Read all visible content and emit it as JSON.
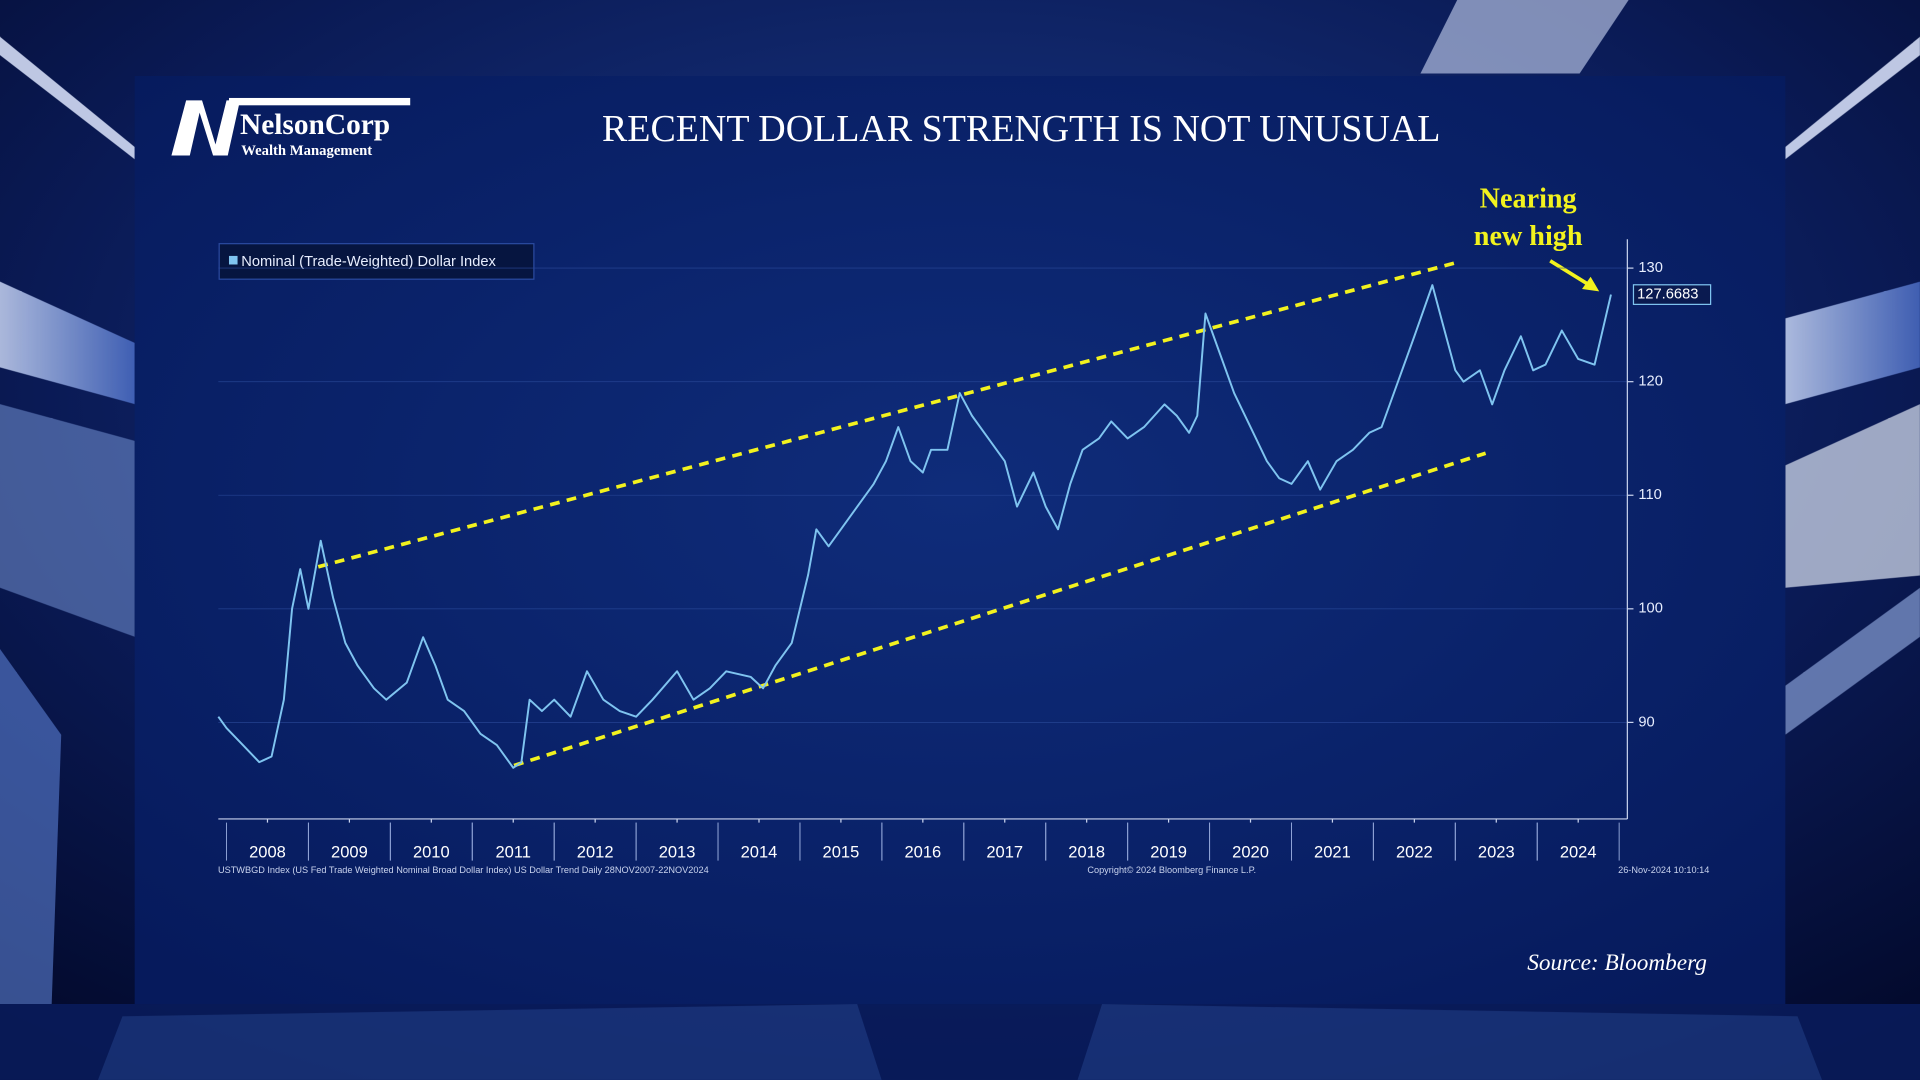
{
  "logo": {
    "name": "NelsonCorp",
    "tagline": "Wealth Management"
  },
  "chart_data": {
    "type": "line",
    "title": "RECENT DOLLAR STRENGTH IS NOT UNUSUAL",
    "series": [
      {
        "name": "Nominal (Trade-Weighted) Dollar Index",
        "color": "#7fc4f0",
        "x": [
          2007.9,
          2008.0,
          2008.2,
          2008.4,
          2008.55,
          2008.7,
          2008.8,
          2008.9,
          2009.0,
          2009.15,
          2009.3,
          2009.45,
          2009.6,
          2009.8,
          2009.95,
          2010.2,
          2010.4,
          2010.55,
          2010.7,
          2010.9,
          2011.1,
          2011.3,
          2011.5,
          2011.6,
          2011.7,
          2011.85,
          2012.0,
          2012.2,
          2012.4,
          2012.6,
          2012.8,
          2013.0,
          2013.2,
          2013.5,
          2013.7,
          2013.9,
          2014.1,
          2014.4,
          2014.55,
          2014.7,
          2014.9,
          2015.1,
          2015.2,
          2015.35,
          2015.5,
          2015.7,
          2015.9,
          2016.05,
          2016.2,
          2016.35,
          2016.5,
          2016.6,
          2016.8,
          2016.95,
          2017.1,
          2017.3,
          2017.5,
          2017.65,
          2017.85,
          2018.0,
          2018.15,
          2018.3,
          2018.45,
          2018.65,
          2018.8,
          2019.0,
          2019.2,
          2019.45,
          2019.6,
          2019.75,
          2019.85,
          2019.95,
          2020.1,
          2020.3,
          2020.5,
          2020.7,
          2020.85,
          2021.0,
          2021.2,
          2021.35,
          2021.55,
          2021.75,
          2021.95,
          2022.1,
          2022.3,
          2022.5,
          2022.72,
          2022.85,
          2023.0,
          2023.1,
          2023.3,
          2023.45,
          2023.6,
          2023.8,
          2023.95,
          2024.1,
          2024.3,
          2024.5,
          2024.7,
          2024.9
        ],
        "values": [
          90.5,
          89.5,
          88,
          86.5,
          87,
          92,
          100,
          103.5,
          100,
          106,
          101,
          97,
          95,
          93,
          92,
          93.5,
          97.5,
          95,
          92,
          91,
          89,
          88,
          86,
          86.5,
          92,
          91,
          92,
          90.5,
          94.5,
          92,
          91,
          90.5,
          92,
          94.5,
          92,
          93,
          94.5,
          94,
          93,
          95,
          97,
          103,
          107,
          105.5,
          107,
          109,
          111,
          113,
          116,
          113,
          112,
          114,
          114,
          119,
          117,
          115,
          113,
          109,
          112,
          109,
          107,
          111,
          114,
          115,
          116.5,
          115,
          116,
          118,
          117,
          115.5,
          117,
          126,
          123,
          119,
          116,
          113,
          111.5,
          111,
          113,
          110.5,
          113,
          114,
          115.5,
          116,
          120,
          124,
          128.5,
          125,
          121,
          120,
          121,
          118,
          121,
          124,
          121,
          121.5,
          124.5,
          122,
          121.5,
          127.6683
        ]
      }
    ],
    "last_value": 127.6683,
    "trend_color": "#f2f21e",
    "trend_lines": [
      {
        "x": [
          2009.12,
          2023.02
        ],
        "y": [
          103.7,
          130.5
        ]
      },
      {
        "x": [
          2011.51,
          2023.37
        ],
        "y": [
          86.2,
          113.7
        ]
      }
    ],
    "annotation": [
      "Nearing",
      "new high"
    ],
    "xlim": [
      2007.9,
      2025.1
    ],
    "xticks": [
      {
        "value": 2008.5,
        "label": "2008"
      },
      {
        "value": 2009.5,
        "label": "2009"
      },
      {
        "value": 2010.5,
        "label": "2010"
      },
      {
        "value": 2011.5,
        "label": "2011"
      },
      {
        "value": 2012.5,
        "label": "2012"
      },
      {
        "value": 2013.5,
        "label": "2013"
      },
      {
        "value": 2014.5,
        "label": "2014"
      },
      {
        "value": 2015.5,
        "label": "2015"
      },
      {
        "value": 2016.5,
        "label": "2016"
      },
      {
        "value": 2017.5,
        "label": "2017"
      },
      {
        "value": 2018.5,
        "label": "2018"
      },
      {
        "value": 2019.5,
        "label": "2019"
      },
      {
        "value": 2020.5,
        "label": "2020"
      },
      {
        "value": 2021.5,
        "label": "2021"
      },
      {
        "value": 2022.5,
        "label": "2022"
      },
      {
        "value": 2023.5,
        "label": "2023"
      },
      {
        "value": 2024.5,
        "label": "2024"
      }
    ],
    "ylim": [
      81.5,
      132
    ],
    "yticks": [
      90,
      100,
      110,
      120,
      130
    ],
    "grid": true,
    "footer_left": "USTWBGD Index (US Fed Trade Weighted Nominal Broad Dollar Index) US Dollar Trend  Daily 28NOV2007-22NOV2024",
    "footer_center": "Copyright© 2024 Bloomberg Finance L.P.",
    "footer_right": "26-Nov-2024 10:10:14",
    "source": "Source: Bloomberg"
  }
}
